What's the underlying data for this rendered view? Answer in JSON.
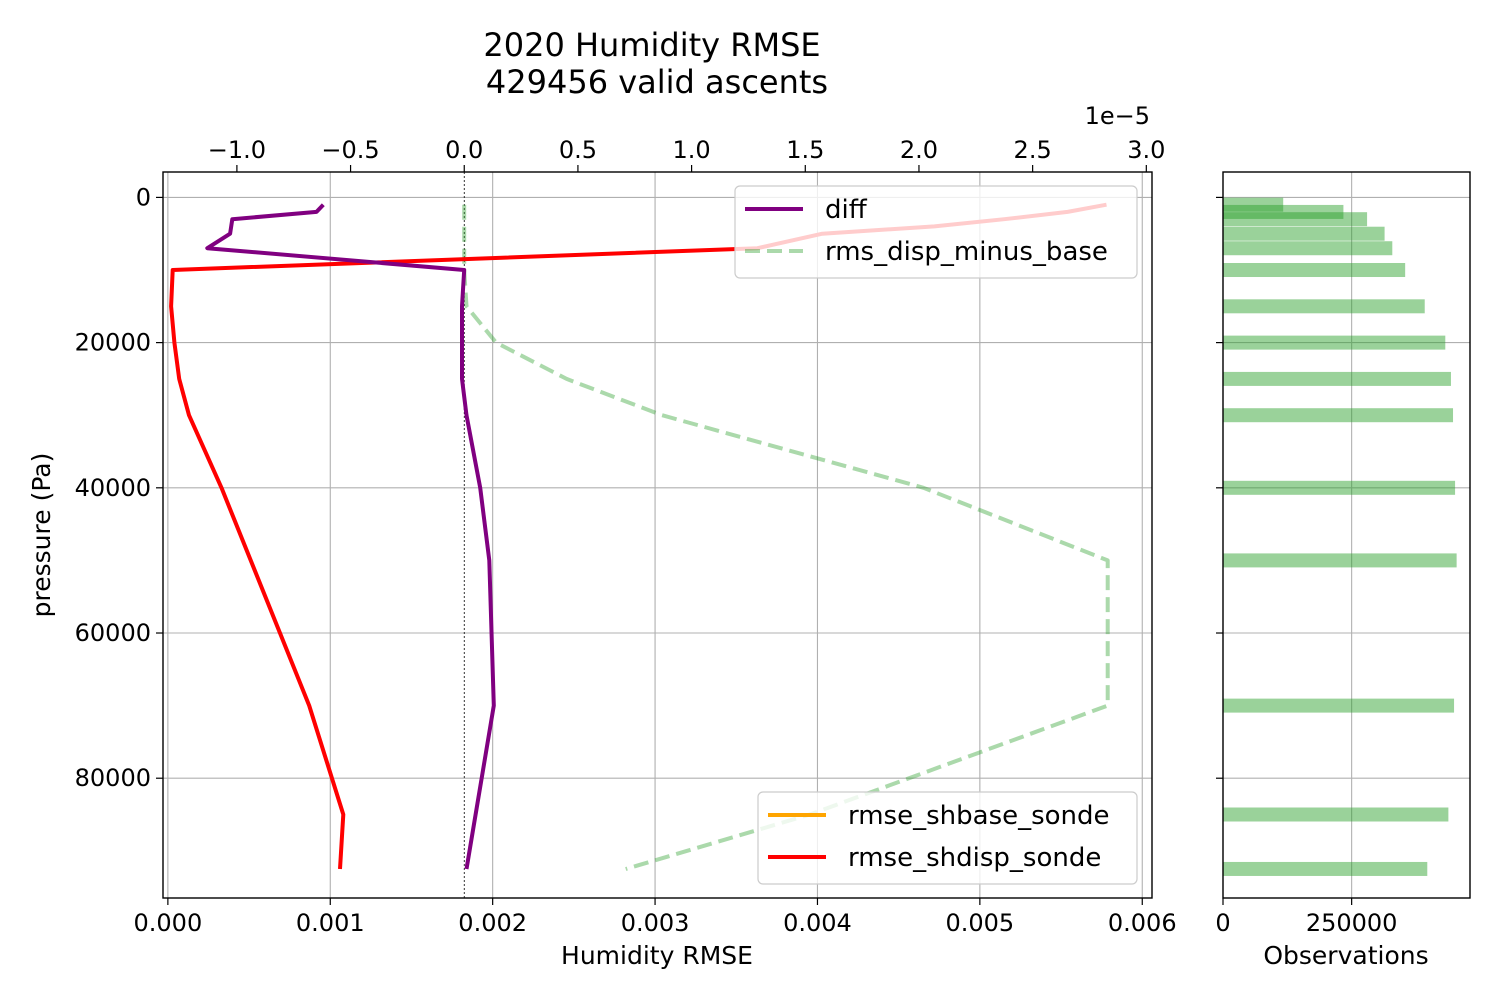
{
  "chart_data": [
    {
      "type": "line",
      "title": [
        "2020 Humidity RMSE",
        "429456 valid ascents"
      ],
      "xlabel": "Humidity RMSE",
      "ylabel": "pressure (Pa)",
      "xlim": [
        -3e-05,
        0.00606
      ],
      "ylim": [
        96500,
        -3500
      ],
      "y_inverted": true,
      "grid": true,
      "x_ticks": [
        0.0,
        0.001,
        0.002,
        0.003,
        0.004,
        0.005,
        0.006
      ],
      "x_tick_labels": [
        "0.000",
        "0.001",
        "0.002",
        "0.003",
        "0.004",
        "0.005",
        "0.006"
      ],
      "y_ticks": [
        0,
        20000,
        40000,
        60000,
        80000
      ],
      "y_tick_labels": [
        "0",
        "20000",
        "40000",
        "60000",
        "80000"
      ],
      "secondary_x": {
        "lim": [
          -1.325e-05,
          3.025e-05
        ],
        "ticks": [
          -1e-05,
          -5e-06,
          0,
          5e-06,
          1e-05,
          1.5e-05,
          2e-05,
          2.5e-05,
          3e-05
        ],
        "tick_labels": [
          "−1.0",
          "−0.5",
          "0.0",
          "0.5",
          "1.0",
          "1.5",
          "2.0",
          "2.5",
          "3.0"
        ],
        "offset_label": "1e−5"
      },
      "zero_line": 0,
      "series": [
        {
          "name": "rmse_shbase_sonde",
          "axis": "bottom",
          "color": "#ffa500",
          "style": "solid",
          "points": []
        },
        {
          "name": "rmse_shdisp_sonde",
          "axis": "bottom",
          "color": "#ff0000",
          "style": "solid",
          "points": [
            [
              0.00578,
              1000
            ],
            [
              0.00554,
              2000
            ],
            [
              0.00515,
              3000
            ],
            [
              0.00472,
              4000
            ],
            [
              0.00403,
              5000
            ],
            [
              0.00363,
              7000
            ],
            [
              3e-05,
              10000
            ],
            [
              2e-05,
              15000
            ],
            [
              4e-05,
              20000
            ],
            [
              7e-05,
              25000
            ],
            [
              0.00013,
              30000
            ],
            [
              0.00033,
              40000
            ],
            [
              0.00087,
              70000
            ],
            [
              0.00108,
              85000
            ],
            [
              0.00106,
              92500
            ]
          ]
        },
        {
          "name": "diff",
          "axis": "top",
          "color": "#800080",
          "style": "solid",
          "points": [
            [
              -6.2e-06,
              1000
            ],
            [
              -6.5e-06,
              2000
            ],
            [
              -1.02e-05,
              3000
            ],
            [
              -1.03e-05,
              5000
            ],
            [
              -1.13e-05,
              7000
            ],
            [
              0.0,
              10000
            ],
            [
              -1e-07,
              15000
            ],
            [
              -1e-07,
              20000
            ],
            [
              -1e-07,
              25000
            ],
            [
              1e-07,
              30000
            ],
            [
              7e-07,
              40000
            ],
            [
              1.1e-06,
              50000
            ],
            [
              1.3e-06,
              70000
            ],
            [
              5e-07,
              85000
            ],
            [
              1e-07,
              92500
            ]
          ]
        },
        {
          "name": "rms_disp_minus_base",
          "axis": "top",
          "color": "#2ca02c",
          "style": "dashed",
          "points": [
            [
              0.0,
              1000
            ],
            [
              0.0,
              5000
            ],
            [
              0.0,
              10000
            ],
            [
              1e-07,
              15000
            ],
            [
              1.4e-06,
              20000
            ],
            [
              4.5e-06,
              25000
            ],
            [
              8.7e-06,
              30000
            ],
            [
              2.02e-05,
              40000
            ],
            [
              2.83e-05,
              50000
            ],
            [
              2.83e-05,
              70000
            ],
            [
              1.52e-05,
              85000
            ],
            [
              7.1e-06,
              92500
            ]
          ]
        }
      ],
      "legends": [
        {
          "placement": "upper-right",
          "entries": [
            "diff",
            "rms_disp_minus_base"
          ]
        },
        {
          "placement": "lower-right",
          "entries": [
            "rmse_shbase_sonde",
            "rmse_shdisp_sonde"
          ]
        }
      ]
    },
    {
      "type": "bar",
      "orientation": "horizontal",
      "xlabel": "Observations",
      "xlim": [
        0,
        480000
      ],
      "x_ticks": [
        0,
        250000
      ],
      "x_tick_labels": [
        "0",
        "250000"
      ],
      "color": "#2ca02c",
      "grid": true,
      "bars": [
        {
          "y": 1000,
          "value": 117000
        },
        {
          "y": 2000,
          "value": 234000
        },
        {
          "y": 3000,
          "value": 280000
        },
        {
          "y": 5000,
          "value": 314000
        },
        {
          "y": 7000,
          "value": 329000
        },
        {
          "y": 10000,
          "value": 354000
        },
        {
          "y": 15000,
          "value": 392000
        },
        {
          "y": 20000,
          "value": 432000
        },
        {
          "y": 25000,
          "value": 443000
        },
        {
          "y": 30000,
          "value": 447000
        },
        {
          "y": 40000,
          "value": 451000
        },
        {
          "y": 50000,
          "value": 454000
        },
        {
          "y": 70000,
          "value": 449000
        },
        {
          "y": 85000,
          "value": 438000
        },
        {
          "y": 92500,
          "value": 397000
        }
      ]
    }
  ]
}
